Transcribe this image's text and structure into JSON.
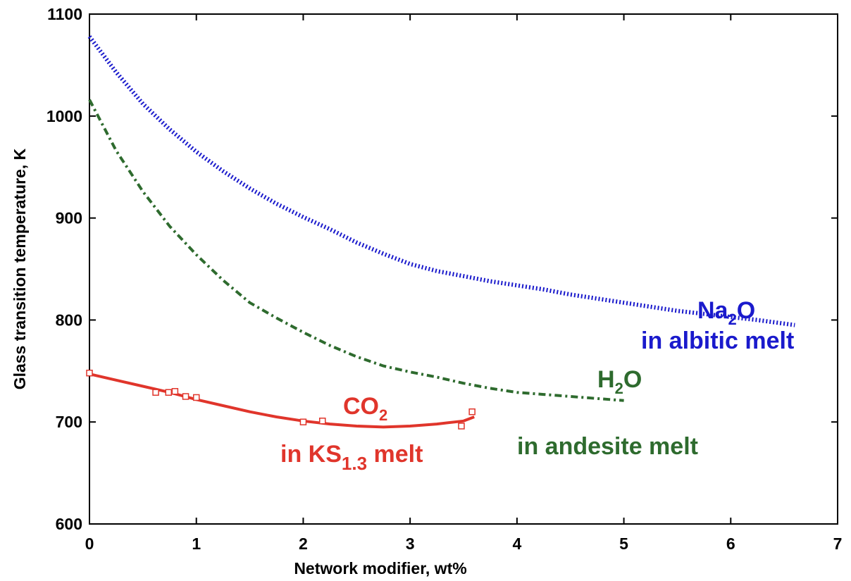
{
  "chart_data": {
    "type": "line",
    "title": "",
    "xlabel": "Network modifier, wt%",
    "ylabel": "Glass transition temperature, K",
    "xlim": [
      0,
      7
    ],
    "ylim": [
      600,
      1100
    ],
    "xticks": [
      0,
      1,
      2,
      3,
      4,
      5,
      6,
      7
    ],
    "yticks": [
      600,
      700,
      800,
      900,
      1000,
      1100
    ],
    "grid": false,
    "legend": "none",
    "series": [
      {
        "key": "na2o",
        "color": "#1a1acc",
        "style": "dotted",
        "label_formula_base": "Na",
        "label_formula_sub": "2",
        "label_formula_tail": "O",
        "label_context": "in albitic melt",
        "x": [
          0,
          0.25,
          0.5,
          0.75,
          1.0,
          1.25,
          1.5,
          1.75,
          2.0,
          2.25,
          2.5,
          2.75,
          3.0,
          3.25,
          3.5,
          3.75,
          4.0,
          4.25,
          4.5,
          4.75,
          5.0,
          5.25,
          5.5,
          5.75,
          6.0,
          6.25,
          6.6
        ],
        "y": [
          1078,
          1043,
          1012,
          987,
          965,
          946,
          929,
          914,
          901,
          889,
          876,
          865,
          855,
          848,
          843,
          838,
          834,
          830,
          825,
          821,
          817,
          813,
          809,
          806,
          803,
          800,
          795
        ]
      },
      {
        "key": "h2o",
        "color": "#2e6b2e",
        "style": "dash-dot",
        "label_formula_base": "H",
        "label_formula_sub": "2",
        "label_formula_tail": "O",
        "label_context": "in andesite melt",
        "x": [
          0,
          0.25,
          0.5,
          0.75,
          1.0,
          1.25,
          1.5,
          1.75,
          2.0,
          2.25,
          2.5,
          2.75,
          3.0,
          3.25,
          3.5,
          3.75,
          4.0,
          4.25,
          4.5,
          4.75,
          5.0
        ],
        "y": [
          1016,
          966,
          926,
          892,
          864,
          839,
          817,
          802,
          788,
          775,
          764,
          755,
          749,
          744,
          738,
          733,
          729,
          727,
          725,
          723,
          721
        ]
      },
      {
        "key": "co2",
        "color": "#e0352b",
        "style": "solid",
        "label_formula_base": "CO",
        "label_formula_sub": "2",
        "label_formula_tail": "",
        "label_context_base": "in KS",
        "label_context_sub": "1.3",
        "label_context_tail": " melt",
        "x": [
          0,
          0.25,
          0.5,
          0.75,
          1.0,
          1.25,
          1.5,
          1.75,
          2.0,
          2.25,
          2.5,
          2.75,
          3.0,
          3.25,
          3.5,
          3.6
        ],
        "y": [
          747,
          741,
          735,
          729,
          722,
          716,
          710,
          705,
          701,
          698,
          696,
          695,
          696,
          698,
          701,
          705
        ],
        "points": [
          {
            "x": 0.0,
            "y": 748
          },
          {
            "x": 0.62,
            "y": 729
          },
          {
            "x": 0.74,
            "y": 729
          },
          {
            "x": 0.8,
            "y": 730
          },
          {
            "x": 0.9,
            "y": 725
          },
          {
            "x": 1.0,
            "y": 724
          },
          {
            "x": 2.0,
            "y": 700
          },
          {
            "x": 2.18,
            "y": 701
          },
          {
            "x": 3.48,
            "y": 696
          },
          {
            "x": 3.58,
            "y": 710
          }
        ]
      }
    ]
  }
}
